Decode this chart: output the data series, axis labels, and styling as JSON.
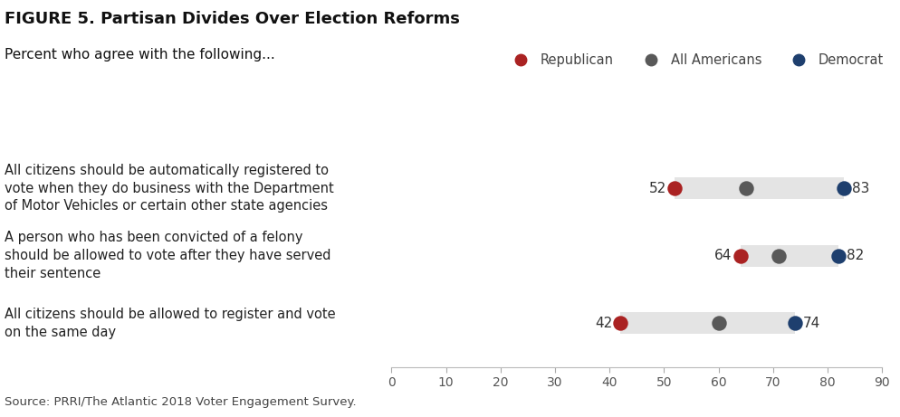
{
  "title": "FIGURE 5. Partisan Divides Over Election Reforms",
  "subtitle": "Percent who agree with the following...",
  "source": "Source: PRRI/The Atlantic 2018 Voter Engagement Survey.",
  "categories": [
    "All citizens should be automatically registered to\nvote when they do business with the Department\nof Motor Vehicles or certain other state agencies",
    "A person who has been convicted of a felony\nshould be allowed to vote after they have served\ntheir sentence",
    "All citizens should be allowed to register and vote\non the same day"
  ],
  "republican": [
    52,
    64,
    42
  ],
  "all_americans": [
    65,
    71,
    60
  ],
  "democrat": [
    83,
    82,
    74
  ],
  "rep_color": "#aa2222",
  "all_color": "#595959",
  "dem_color": "#1e3f6e",
  "bar_color": "#e4e4e4",
  "xlim": [
    0,
    90
  ],
  "xticks": [
    0,
    10,
    20,
    30,
    40,
    50,
    60,
    70,
    80,
    90
  ],
  "dot_size": 140,
  "bar_height": 0.32,
  "legend_labels": [
    "Republican",
    "All Americans",
    "Democrat"
  ],
  "title_fontsize": 13,
  "subtitle_fontsize": 11,
  "label_fontsize": 10.5,
  "tick_fontsize": 10,
  "source_fontsize": 9.5,
  "value_fontsize": 11
}
